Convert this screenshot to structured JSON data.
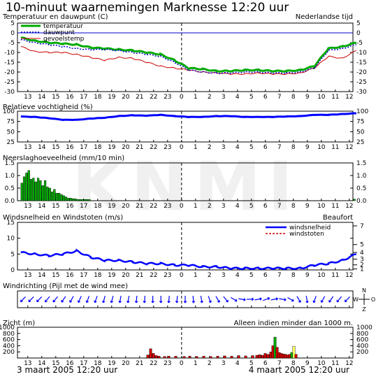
{
  "page": {
    "title": "10-minuut waarnemingen Marknesse 12:20 uur",
    "footer_left": "3 maart 2005 12:20 uur",
    "footer_right": "4 maart 2005 12:20 uur",
    "watermark": "KNMI"
  },
  "colors": {
    "temperature": "#00aa00",
    "dewpoint": "#0000cc",
    "feels_like": "#cc0000",
    "humidity": "#0000ff",
    "wind_speed": "#0000ff",
    "wind_gust": "#cc0000",
    "precip_bar": "#00aa00",
    "vis_low": "#cc0000",
    "vis_mid": "#00aa00",
    "vis_high": "#ffff66",
    "now_line": "#000000",
    "zero_line": "#0000cc"
  },
  "x_axis": {
    "hour_labels": [
      "13",
      "14",
      "15",
      "16",
      "17",
      "18",
      "19",
      "20",
      "21",
      "22",
      "23",
      "0",
      "1",
      "2",
      "3",
      "4",
      "5",
      "6",
      "7",
      "8",
      "9",
      "10",
      "11",
      "12"
    ],
    "now_marker_label": "0"
  },
  "chart_data": [
    {
      "type": "line",
      "title": "Temperatuur en dauwpunt (C)",
      "right_title": "Nederlandse tijd",
      "legend": [
        "temperatuur",
        "dauwpunt",
        "gevoelstemp"
      ],
      "ylim": [
        -30,
        5
      ],
      "yticks": [
        "5",
        "0",
        "-5",
        "-10",
        "-15",
        "-20",
        "-25",
        "-30"
      ],
      "x_hours": [
        0,
        1,
        2,
        3,
        4,
        5,
        6,
        7,
        8,
        9,
        10,
        11,
        12,
        13,
        14,
        15,
        16,
        17,
        18,
        19,
        20,
        21,
        22,
        23,
        24
      ],
      "series": [
        {
          "name": "temperatuur",
          "values": [
            -2.5,
            -4,
            -5,
            -5.5,
            -6,
            -7.5,
            -8,
            -8.5,
            -9,
            -10,
            -11,
            -14,
            -18,
            -18.5,
            -19.5,
            -19.5,
            -19,
            -19,
            -19.5,
            -19.5,
            -19,
            -17,
            -8,
            -7,
            -5
          ]
        },
        {
          "name": "dauwpunt",
          "values": [
            -3.5,
            -5,
            -6,
            -7,
            -8,
            -8.5,
            -8.5,
            -9,
            -10,
            -11,
            -12,
            -15,
            -19,
            -20,
            -20.5,
            -20.5,
            -20,
            -20,
            -20.5,
            -20.5,
            -20,
            -18,
            -9,
            -8,
            -6
          ]
        },
        {
          "name": "gevoelstemp",
          "values": [
            -7,
            -9.5,
            -10,
            -10,
            -11,
            -12.5,
            -14,
            -12.5,
            -13,
            -15,
            -17,
            -18,
            -19,
            -20,
            -20.5,
            -21,
            -21,
            -20.5,
            -21,
            -21,
            -20.5,
            -18,
            -12,
            -13,
            -9
          ]
        }
      ]
    },
    {
      "type": "line",
      "title": "Relatieve vochtigheid (%)",
      "ylim": [
        25,
        100
      ],
      "yticks": [
        "100",
        "75",
        "50",
        "25"
      ],
      "series": [
        {
          "name": "Relatieve vochtigheid",
          "values": [
            87,
            86,
            83,
            79,
            79,
            82,
            84,
            88,
            90,
            89,
            91,
            88,
            86,
            86,
            88,
            88,
            86,
            86,
            86,
            87,
            88,
            91,
            91,
            93,
            95
          ]
        }
      ]
    },
    {
      "type": "bar",
      "title": "Neerslaghoeveelheid (mm/10 min)",
      "ylim": [
        0,
        1.5
      ],
      "yticks": [
        "1.5",
        "1.0",
        "0.5",
        "0.0"
      ],
      "bin_hours": 0.1667,
      "series": [
        {
          "name": "neerslag",
          "start_hour": 0,
          "values": [
            0.7,
            0.95,
            1.1,
            1.2,
            0.85,
            0.9,
            0.75,
            0.9,
            0.8,
            0.6,
            0.8,
            0.55,
            0.5,
            0.35,
            0.45,
            0.3,
            0.3,
            0.25,
            0.2,
            0.15,
            0.1,
            0.1,
            0.08,
            0.08,
            0.05,
            0.05,
            0.05,
            0.05,
            0.05,
            0.05
          ]
        },
        {
          "name": "neerslag-laat",
          "start_hour": 23.8,
          "values": [
            0.06
          ]
        }
      ]
    },
    {
      "type": "line",
      "title": "Windsnelheid en Windstoten (m/s)",
      "right_title": "Beaufort",
      "legend": [
        "windsnelheid",
        "windstoten"
      ],
      "ylim": [
        0,
        15
      ],
      "yticks": [
        "15",
        "10",
        "5",
        "0"
      ],
      "beaufort_ticks": [
        "7",
        "5",
        "4",
        "3",
        "2",
        "1"
      ],
      "beaufort_ms": [
        13.9,
        8.0,
        5.5,
        3.4,
        1.6,
        0.3
      ],
      "series": [
        {
          "name": "windsnelheid",
          "values": [
            5.5,
            5,
            4.5,
            5,
            6,
            4,
            3,
            3,
            2.5,
            2,
            2,
            1.5,
            1.5,
            1,
            1,
            0.5,
            0.5,
            0.5,
            0.5,
            0.5,
            0.5,
            1.5,
            2,
            3,
            5
          ]
        }
      ]
    },
    {
      "type": "scatter",
      "title": "Windrichting (Pijl met de wind mee)",
      "compass": [
        "N",
        "W",
        "O",
        "Z"
      ],
      "arrow_angles": [
        225,
        225,
        225,
        220,
        220,
        215,
        210,
        205,
        200,
        200,
        195,
        195,
        190,
        190,
        185,
        185,
        180,
        180,
        185,
        185,
        180,
        175,
        170,
        160,
        150,
        140,
        120,
        100,
        90,
        80,
        70,
        80,
        100,
        120,
        150,
        170,
        200,
        210,
        215,
        220,
        225
      ]
    },
    {
      "type": "bar",
      "title": "Zicht (m)",
      "right_title": "Alleen indien minder dan 1000 m.",
      "ylim": [
        0,
        1000
      ],
      "yticks": [
        "1000",
        "800",
        "600",
        "400",
        "200"
      ],
      "bars": [
        {
          "hour": 9.0,
          "value": 100,
          "cls": "low"
        },
        {
          "hour": 9.2,
          "value": 300,
          "cls": "low"
        },
        {
          "hour": 9.4,
          "value": 150,
          "cls": "low"
        },
        {
          "hour": 9.6,
          "value": 80,
          "cls": "low"
        },
        {
          "hour": 9.8,
          "value": 60,
          "cls": "low"
        },
        {
          "hour": 10.2,
          "value": 50,
          "cls": "low"
        },
        {
          "hour": 10.5,
          "value": 60,
          "cls": "low"
        },
        {
          "hour": 11.0,
          "value": 60,
          "cls": "low"
        },
        {
          "hour": 11.6,
          "value": 50,
          "cls": "low"
        },
        {
          "hour": 12.0,
          "value": 60,
          "cls": "low"
        },
        {
          "hour": 12.5,
          "value": 50,
          "cls": "low"
        },
        {
          "hour": 13.0,
          "value": 60,
          "cls": "low"
        },
        {
          "hour": 13.5,
          "value": 50,
          "cls": "low"
        },
        {
          "hour": 14.0,
          "value": 60,
          "cls": "low"
        },
        {
          "hour": 14.5,
          "value": 70,
          "cls": "low"
        },
        {
          "hour": 15.0,
          "value": 60,
          "cls": "low"
        },
        {
          "hour": 15.5,
          "value": 80,
          "cls": "low"
        },
        {
          "hour": 16.0,
          "value": 70,
          "cls": "low"
        },
        {
          "hour": 16.5,
          "value": 80,
          "cls": "low"
        },
        {
          "hour": 16.8,
          "value": 90,
          "cls": "low"
        },
        {
          "hour": 17.0,
          "value": 110,
          "cls": "low"
        },
        {
          "hour": 17.2,
          "value": 90,
          "cls": "low"
        },
        {
          "hour": 17.4,
          "value": 150,
          "cls": "low"
        },
        {
          "hour": 17.6,
          "value": 120,
          "cls": "low"
        },
        {
          "hour": 17.8,
          "value": 200,
          "cls": "low"
        },
        {
          "hour": 17.95,
          "value": 400,
          "cls": "low"
        },
        {
          "hour": 18.1,
          "value": 680,
          "cls": "mid"
        },
        {
          "hour": 18.25,
          "value": 350,
          "cls": "low"
        },
        {
          "hour": 18.4,
          "value": 180,
          "cls": "low"
        },
        {
          "hour": 18.55,
          "value": 150,
          "cls": "low"
        },
        {
          "hour": 18.7,
          "value": 130,
          "cls": "low"
        },
        {
          "hour": 18.85,
          "value": 120,
          "cls": "low"
        },
        {
          "hour": 19.0,
          "value": 100,
          "cls": "low"
        },
        {
          "hour": 19.15,
          "value": 120,
          "cls": "low"
        },
        {
          "hour": 19.3,
          "value": 180,
          "cls": "mid"
        },
        {
          "hour": 19.45,
          "value": 380,
          "cls": "high"
        },
        {
          "hour": 19.6,
          "value": 120,
          "cls": "low"
        }
      ]
    }
  ]
}
